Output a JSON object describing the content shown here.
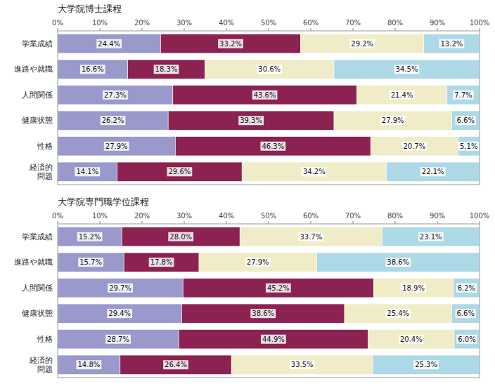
{
  "chart_data": [
    {
      "type": "bar",
      "orientation": "horizontal",
      "stacked": true,
      "data_labels": true,
      "grid": false,
      "title": "大学院博士課程",
      "categories": [
        "学業成績",
        "進路や就職",
        "人間関係",
        "健康状態",
        "性格",
        "経済的\n問題"
      ],
      "xlim": [
        0,
        100
      ],
      "xticks": [
        {
          "value": 0,
          "label": "0%"
        },
        {
          "value": 10,
          "label": "10%"
        },
        {
          "value": 20,
          "label": "20%"
        },
        {
          "value": 30,
          "label": "30%"
        },
        {
          "value": 40,
          "label": "40%"
        },
        {
          "value": 50,
          "label": "50%"
        },
        {
          "value": 60,
          "label": "60%"
        },
        {
          "value": 70,
          "label": "70%"
        },
        {
          "value": 80,
          "label": "80%"
        },
        {
          "value": 90,
          "label": "90%"
        },
        {
          "value": 100,
          "label": "100%"
        }
      ],
      "series": [
        {
          "color": "#9999cc",
          "values": [
            24.4,
            16.6,
            27.3,
            26.2,
            27.9,
            14.1
          ],
          "value_labels": [
            "24.4%",
            "16.6%",
            "27.3%",
            "26.2%",
            "27.9%",
            "14.1%"
          ]
        },
        {
          "color": "#8b2252",
          "values": [
            33.2,
            18.3,
            43.6,
            39.3,
            46.3,
            29.6
          ],
          "value_labels": [
            "33.2%",
            "18.3%",
            "43.6%",
            "39.3%",
            "46.3%",
            "29.6%"
          ]
        },
        {
          "color": "#f0ecc8",
          "values": [
            29.2,
            30.6,
            21.4,
            27.9,
            20.7,
            34.2
          ],
          "value_labels": [
            "29.2%",
            "30.6%",
            "21.4%",
            "27.9%",
            "20.7%",
            "34.2%"
          ]
        },
        {
          "color": "#add8e6",
          "values": [
            13.2,
            34.5,
            7.7,
            6.6,
            5.1,
            22.1
          ],
          "value_labels": [
            "13.2%",
            "34.5%",
            "7.7%",
            "6.6%",
            "5.1%",
            "22.1%"
          ]
        }
      ]
    },
    {
      "type": "bar",
      "orientation": "horizontal",
      "stacked": true,
      "data_labels": true,
      "grid": false,
      "title": "大学院専門職学位課程",
      "categories": [
        "学業成績",
        "進路や就職",
        "人間関係",
        "健康状態",
        "性格",
        "経済的\n問題"
      ],
      "xlim": [
        0,
        100
      ],
      "xticks": [
        {
          "value": 0,
          "label": "0%"
        },
        {
          "value": 10,
          "label": "10%"
        },
        {
          "value": 20,
          "label": "20%"
        },
        {
          "value": 30,
          "label": "30%"
        },
        {
          "value": 40,
          "label": "40%"
        },
        {
          "value": 50,
          "label": "50%"
        },
        {
          "value": 60,
          "label": "60%"
        },
        {
          "value": 70,
          "label": "70%"
        },
        {
          "value": 80,
          "label": "80%"
        },
        {
          "value": 90,
          "label": "90%"
        },
        {
          "value": 100,
          "label": "100%"
        }
      ],
      "series": [
        {
          "color": "#9999cc",
          "values": [
            15.2,
            15.7,
            29.7,
            29.4,
            28.7,
            14.8
          ],
          "value_labels": [
            "15.2%",
            "15.7%",
            "29.7%",
            "29.4%",
            "28.7%",
            "14.8%"
          ]
        },
        {
          "color": "#8b2252",
          "values": [
            28.0,
            17.8,
            45.2,
            38.6,
            44.9,
            26.4
          ],
          "value_labels": [
            "28.0%",
            "17.8%",
            "45.2%",
            "38.6%",
            "44.9%",
            "26.4%"
          ]
        },
        {
          "color": "#f0ecc8",
          "values": [
            33.7,
            27.9,
            18.9,
            25.4,
            20.4,
            33.5
          ],
          "value_labels": [
            "33.7%",
            "27.9%",
            "18.9%",
            "25.4%",
            "20.4%",
            "33.5%"
          ]
        },
        {
          "color": "#add8e6",
          "values": [
            23.1,
            38.6,
            6.2,
            6.6,
            6.0,
            25.3
          ],
          "value_labels": [
            "23.1%",
            "38.6%",
            "6.2%",
            "6.6%",
            "6.0%",
            "25.3%"
          ]
        }
      ]
    }
  ]
}
